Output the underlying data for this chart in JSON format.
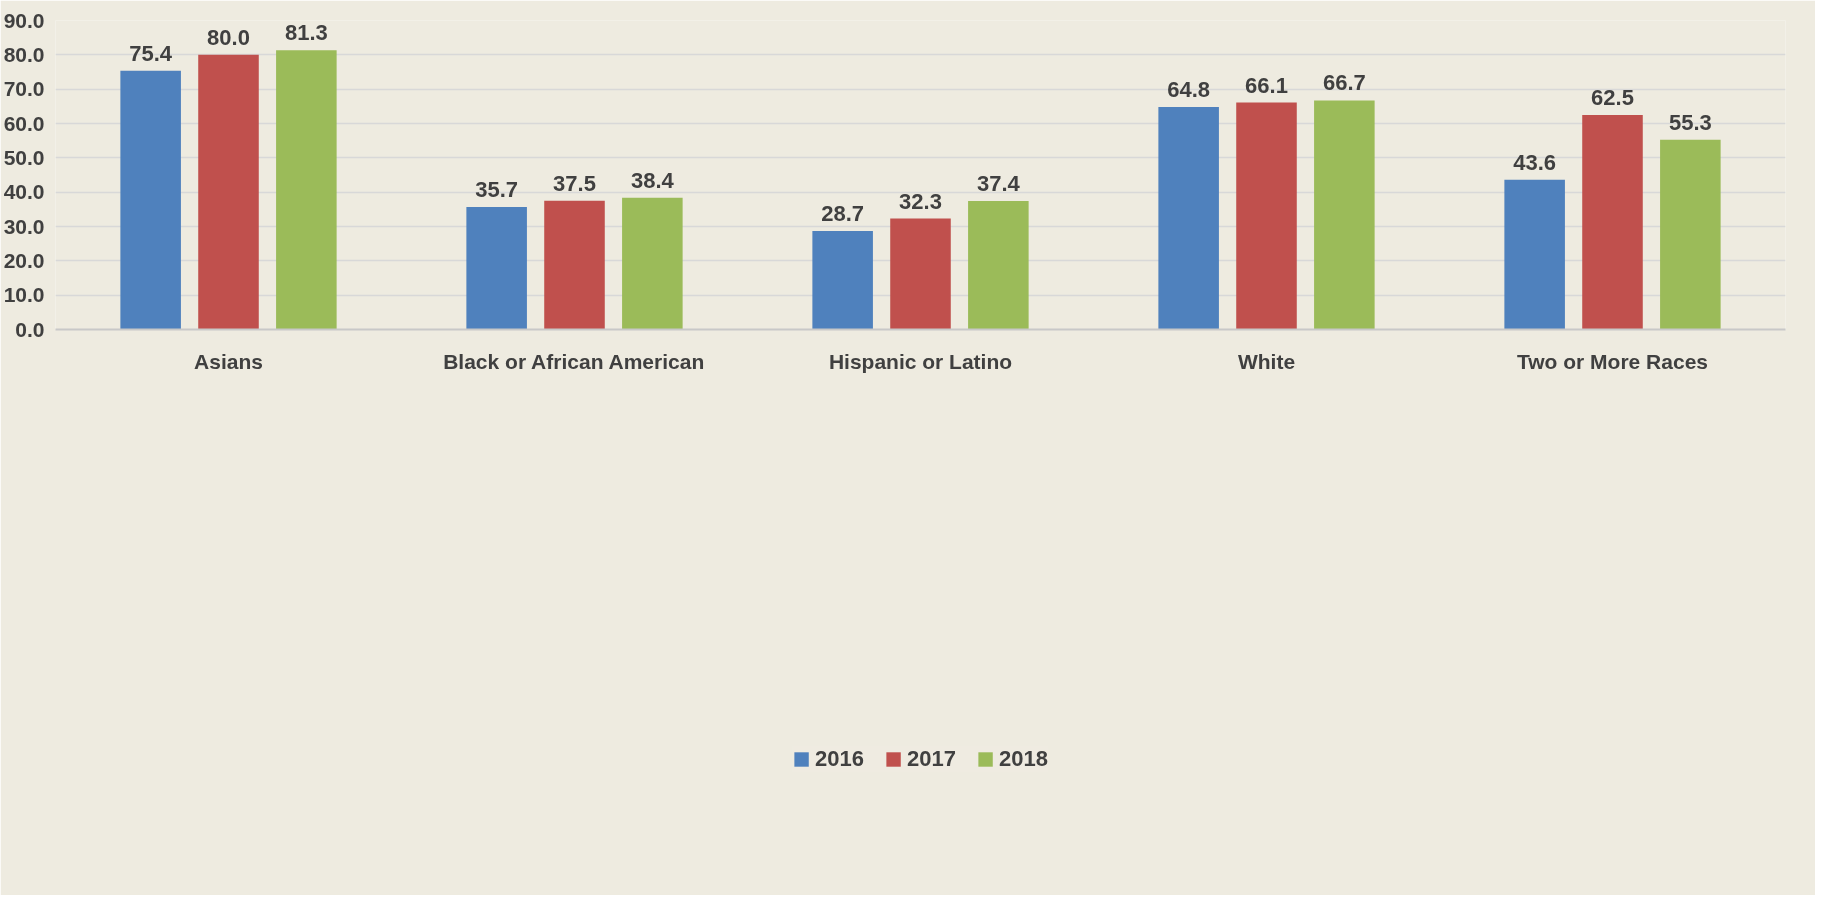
{
  "chart_data": {
    "type": "bar",
    "categories": [
      "Asians",
      "Black or African American",
      "Hispanic or Latino",
      "White",
      "Two or More Races"
    ],
    "series": [
      {
        "name": "2016",
        "color": "#4f81bd",
        "values": [
          75.4,
          35.7,
          28.7,
          64.8,
          43.6
        ],
        "value_labels": [
          "75.4",
          "35.7",
          "28.7",
          "64.8",
          "43.6"
        ]
      },
      {
        "name": "2017",
        "color": "#c0504d",
        "values": [
          80.0,
          37.5,
          32.3,
          66.1,
          62.5
        ],
        "value_labels": [
          "80.0",
          "37.5",
          "32.3",
          "66.1",
          "62.5"
        ]
      },
      {
        "name": "2018",
        "color": "#9bbb59",
        "values": [
          81.3,
          38.4,
          37.4,
          66.7,
          55.3
        ],
        "value_labels": [
          "81.3",
          "38.4",
          "37.4",
          "66.7",
          "55.3"
        ]
      }
    ],
    "ylim": [
      0,
      90
    ],
    "yticks": [
      {
        "value": 0,
        "label": "0.0"
      },
      {
        "value": 10,
        "label": "10.0"
      },
      {
        "value": 20,
        "label": "20.0"
      },
      {
        "value": 30,
        "label": "30.0"
      },
      {
        "value": 40,
        "label": "40.0"
      },
      {
        "value": 50,
        "label": "50.0"
      },
      {
        "value": 60,
        "label": "60.0"
      },
      {
        "value": 70,
        "label": "70.0"
      },
      {
        "value": 80,
        "label": "80.0"
      },
      {
        "value": 90,
        "label": "90.0"
      }
    ],
    "grid": "y",
    "legend": "bottom"
  }
}
